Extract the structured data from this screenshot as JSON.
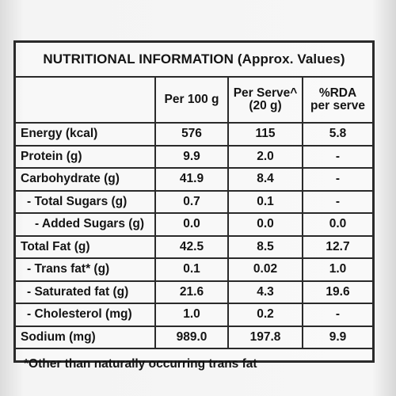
{
  "title": "NUTRITIONAL INFORMATION (Approx. Values)",
  "headers": {
    "per100": "Per 100 g",
    "perServe_l1": "Per Serve^",
    "perServe_l2": "(20 g)",
    "rda_l1": "%RDA",
    "rda_l2": "per serve"
  },
  "rows": [
    {
      "name": "Energy (kcal)",
      "per100": "576",
      "perServe": "115",
      "rda": "5.8"
    },
    {
      "name": "Protein (g)",
      "per100": "9.9",
      "perServe": "2.0",
      "rda": "-"
    },
    {
      "name": "Carbohydrate (g)",
      "per100": "41.9",
      "perServe": "8.4",
      "rda": "-"
    },
    {
      "name": "- Total Sugars (g)",
      "per100": "0.7",
      "perServe": "0.1",
      "rda": "-"
    },
    {
      "name": "- Added Sugars (g)",
      "per100": "0.0",
      "perServe": "0.0",
      "rda": "0.0"
    },
    {
      "name": "Total Fat (g)",
      "per100": "42.5",
      "perServe": "8.5",
      "rda": "12.7"
    },
    {
      "name": "- Trans fat* (g)",
      "per100": "0.1",
      "perServe": "0.02",
      "rda": "1.0"
    },
    {
      "name": "- Saturated fat (g)",
      "per100": "21.6",
      "perServe": "4.3",
      "rda": "19.6"
    },
    {
      "name": "- Cholesterol (mg)",
      "per100": "1.0",
      "perServe": "0.2",
      "rda": "-"
    },
    {
      "name": "Sodium (mg)",
      "per100": "989.0",
      "perServe": "197.8",
      "rda": "9.9"
    }
  ],
  "footnote": "*Other than naturally occurring trans fat"
}
